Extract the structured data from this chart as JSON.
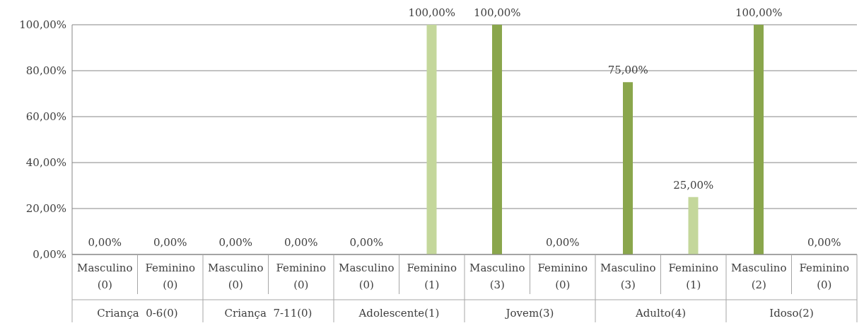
{
  "chart_data": {
    "type": "bar",
    "categories": [
      "Masculino (0)",
      "Feminino (0)",
      "Masculino (0)",
      "Feminino (0)",
      "Masculino (0)",
      "Feminino (1)",
      "Masculino (3)",
      "Feminino (0)",
      "Masculino (3)",
      "Feminino (1)",
      "Masculino (2)",
      "Feminino (0)"
    ],
    "values": [
      0,
      0,
      0,
      0,
      0,
      100,
      100,
      0,
      75,
      25,
      100,
      0
    ],
    "colors": [
      "#8aa64c",
      "#c4d79b",
      "#8aa64c",
      "#c4d79b",
      "#8aa64c",
      "#c4d79b",
      "#8aa64c",
      "#c4d79b",
      "#8aa64c",
      "#c4d79b",
      "#8aa64c",
      "#c4d79b"
    ],
    "value_labels": [
      "0,00%",
      "0,00%",
      "0,00%",
      "0,00%",
      "0,00%",
      "100,00%",
      "100,00%",
      "0,00%",
      "75,00%",
      "25,00%",
      "100,00%",
      "0,00%"
    ],
    "annotations": [
      "Criança  0-6(0)",
      "Criança  7-11(0)",
      "Adolescente(1)",
      "Jovem(3)",
      "Adulto(4)",
      "Idoso(2)"
    ],
    "ylim": [
      0,
      100
    ],
    "yticks": [
      {
        "value": 0,
        "label": "0,00%"
      },
      {
        "value": 20,
        "label": "20,00%"
      },
      {
        "value": 40,
        "label": "40,00%"
      },
      {
        "value": 60,
        "label": "60,00%"
      },
      {
        "value": 80,
        "label": "80,00%"
      },
      {
        "value": 100,
        "label": "100,00%"
      }
    ],
    "grid": "y",
    "legend": false
  }
}
